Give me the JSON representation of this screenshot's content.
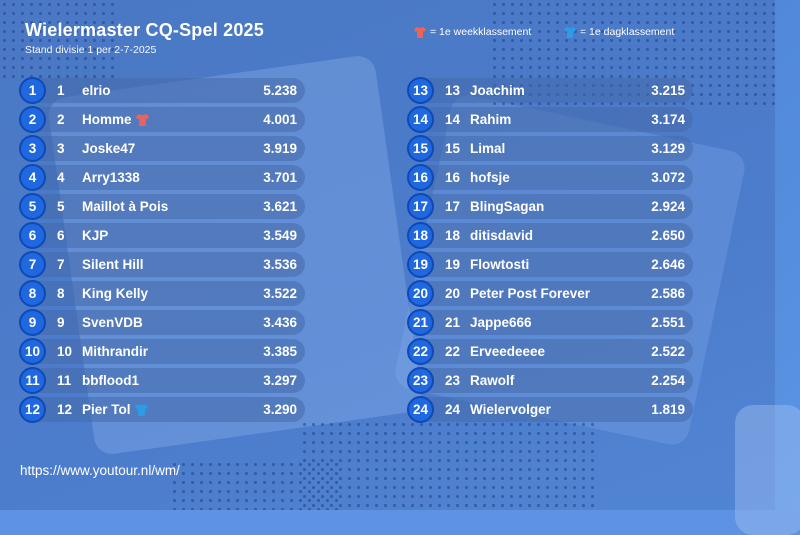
{
  "header": {
    "title": "Wielermaster CQ-Spel 2025",
    "subtitle": "Stand divisie 1 per 2-7-2025"
  },
  "legend": {
    "weekly": "= 1e weekklassement",
    "daily": "= 1e dagklassement",
    "weekly_color": "#e8655f",
    "daily_color": "#2c9be8"
  },
  "rows_left": [
    {
      "rank": "1",
      "rank2": "1",
      "name": "elrio",
      "score": "5.238",
      "jersey": ""
    },
    {
      "rank": "2",
      "rank2": "2",
      "name": "Homme",
      "score": "4.001",
      "jersey": "weekly"
    },
    {
      "rank": "3",
      "rank2": "3",
      "name": "Joske47",
      "score": "3.919",
      "jersey": ""
    },
    {
      "rank": "4",
      "rank2": "4",
      "name": "Arry1338",
      "score": "3.701",
      "jersey": ""
    },
    {
      "rank": "5",
      "rank2": "5",
      "name": "Maillot à Pois",
      "score": "3.621",
      "jersey": ""
    },
    {
      "rank": "6",
      "rank2": "6",
      "name": "KJP",
      "score": "3.549",
      "jersey": ""
    },
    {
      "rank": "7",
      "rank2": "7",
      "name": "Silent Hill",
      "score": "3.536",
      "jersey": ""
    },
    {
      "rank": "8",
      "rank2": "8",
      "name": "King Kelly",
      "score": "3.522",
      "jersey": ""
    },
    {
      "rank": "9",
      "rank2": "9",
      "name": "SvenVDB",
      "score": "3.436",
      "jersey": ""
    },
    {
      "rank": "10",
      "rank2": "10",
      "name": "Mithrandir",
      "score": "3.385",
      "jersey": ""
    },
    {
      "rank": "11",
      "rank2": "11",
      "name": "bbflood1",
      "score": "3.297",
      "jersey": ""
    },
    {
      "rank": "12",
      "rank2": "12",
      "name": "Pier Tol",
      "score": "3.290",
      "jersey": "daily"
    }
  ],
  "rows_right": [
    {
      "rank": "13",
      "rank2": "13",
      "name": "Joachim",
      "score": "3.215",
      "jersey": ""
    },
    {
      "rank": "14",
      "rank2": "14",
      "name": "Rahim",
      "score": "3.174",
      "jersey": ""
    },
    {
      "rank": "15",
      "rank2": "15",
      "name": "Limal",
      "score": "3.129",
      "jersey": ""
    },
    {
      "rank": "16",
      "rank2": "16",
      "name": "hofsje",
      "score": "3.072",
      "jersey": ""
    },
    {
      "rank": "17",
      "rank2": "17",
      "name": "BlingSagan",
      "score": "2.924",
      "jersey": ""
    },
    {
      "rank": "18",
      "rank2": "18",
      "name": "ditisdavid",
      "score": "2.650",
      "jersey": ""
    },
    {
      "rank": "19",
      "rank2": "19",
      "name": "Flowtosti",
      "score": "2.646",
      "jersey": ""
    },
    {
      "rank": "20",
      "rank2": "20",
      "name": "Peter Post Forever",
      "score": "2.586",
      "jersey": ""
    },
    {
      "rank": "21",
      "rank2": "21",
      "name": "Jappe666",
      "score": "2.551",
      "jersey": ""
    },
    {
      "rank": "22",
      "rank2": "22",
      "name": "Erveedeeee",
      "score": "2.522",
      "jersey": ""
    },
    {
      "rank": "23",
      "rank2": "23",
      "name": "Rawolf",
      "score": "2.254",
      "jersey": ""
    },
    {
      "rank": "24",
      "rank2": "24",
      "name": "Wielervolger",
      "score": "1.819",
      "jersey": ""
    }
  ],
  "footer": {
    "url": "https://www.youtour.nl/wm/"
  }
}
